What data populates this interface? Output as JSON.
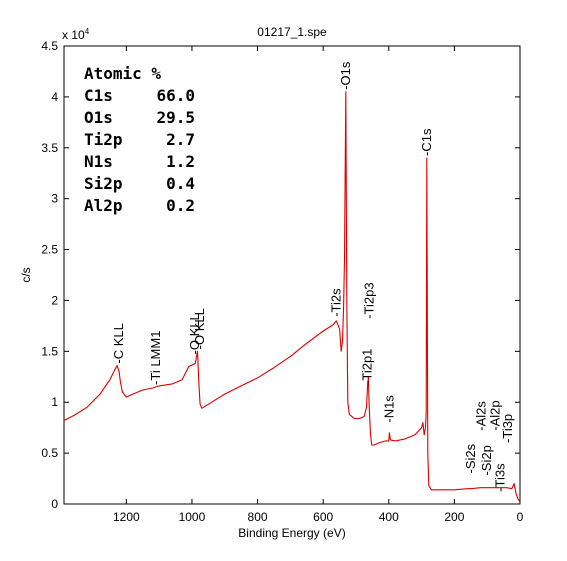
{
  "chart_data": {
    "type": "line",
    "title": "01217_1.spe",
    "xlabel": "Binding Energy (eV)",
    "ylabel": "c/s",
    "y_multiplier_label": "x 10",
    "y_multiplier_exp": "4",
    "xlim": [
      1390,
      0
    ],
    "ylim": [
      0,
      4.5
    ],
    "x_reversed": true,
    "grid": false,
    "x_ticks": [
      1200,
      1000,
      800,
      600,
      400,
      200,
      0
    ],
    "y_ticks": [
      0,
      0.5,
      1,
      1.5,
      2,
      2.5,
      3,
      3.5,
      4,
      4.5
    ],
    "x_tick_labels": [
      "1200",
      "1000",
      "800",
      "600",
      "400",
      "200",
      "0"
    ],
    "y_tick_labels": [
      "0",
      "0.5",
      "1",
      "1.5",
      "2",
      "2.5",
      "3",
      "3.5",
      "4",
      "4.5"
    ],
    "line_color": "#dd0000",
    "series": [
      {
        "x": [
          1390,
          1360,
          1320,
          1280,
          1250,
          1235,
          1228,
          1222,
          1218,
          1212,
          1200,
          1180,
          1150,
          1120,
          1100,
          1060,
          1030,
          1010,
          990,
          983,
          979,
          975,
          970,
          960,
          940,
          900,
          850,
          800,
          750,
          700,
          650,
          600,
          570,
          560,
          550,
          545,
          541,
          538,
          535,
          531,
          528,
          525,
          520,
          505,
          490,
          475,
          468,
          465,
          462,
          460,
          456,
          452,
          445,
          430,
          410,
          400,
          398,
          395,
          380,
          350,
          320,
          300,
          296,
          292,
          288,
          286,
          284,
          281,
          278,
          270,
          240,
          200,
          160,
          150,
          120,
          100,
          80,
          40,
          25,
          18,
          12,
          6,
          0
        ],
        "y": [
          0.82,
          0.87,
          0.95,
          1.08,
          1.22,
          1.32,
          1.36,
          1.3,
          1.2,
          1.1,
          1.05,
          1.08,
          1.12,
          1.14,
          1.16,
          1.18,
          1.22,
          1.35,
          1.38,
          1.5,
          1.2,
          0.98,
          0.94,
          0.96,
          1.0,
          1.08,
          1.16,
          1.24,
          1.34,
          1.45,
          1.58,
          1.7,
          1.76,
          1.8,
          1.72,
          1.5,
          1.6,
          1.9,
          2.4,
          4.05,
          2.0,
          1.0,
          0.88,
          0.84,
          0.84,
          0.86,
          0.95,
          1.15,
          1.25,
          0.98,
          0.7,
          0.58,
          0.58,
          0.6,
          0.62,
          0.62,
          0.7,
          0.63,
          0.62,
          0.64,
          0.68,
          0.75,
          0.8,
          0.68,
          0.75,
          0.9,
          3.4,
          0.5,
          0.18,
          0.14,
          0.14,
          0.14,
          0.15,
          0.15,
          0.16,
          0.16,
          0.16,
          0.16,
          0.15,
          0.2,
          0.1,
          0.05,
          0.02
        ]
      }
    ],
    "peak_labels": [
      {
        "text": "-C KLL",
        "x": 1222,
        "y": 1.36
      },
      {
        "text": "-Ti LMM1",
        "x": 1110,
        "y": 1.15
      },
      {
        "text": "-O KLL",
        "x": 990,
        "y": 1.45
      },
      {
        "text": "-O KLL",
        "x": 975,
        "y": 1.5
      },
      {
        "text": "-O1s",
        "x": 531,
        "y": 4.05
      },
      {
        "text": "-Ti2s",
        "x": 560,
        "y": 1.82
      },
      {
        "text": "-Ti2p1",
        "x": 465,
        "y": 1.15
      },
      {
        "text": "-Ti2p3",
        "x": 459,
        "y": 1.8
      },
      {
        "text": "-N1s",
        "x": 398,
        "y": 0.78
      },
      {
        "text": "-C1s",
        "x": 284,
        "y": 3.4
      },
      {
        "text": "-Si2s",
        "x": 150,
        "y": 0.28
      },
      {
        "text": "-Si2p",
        "x": 100,
        "y": 0.26
      },
      {
        "text": "-Al2s",
        "x": 118,
        "y": 0.7
      },
      {
        "text": "-Ti3s",
        "x": 60,
        "y": 0.1
      },
      {
        "text": "-Al2p",
        "x": 74,
        "y": 0.7
      },
      {
        "text": "-Ti3p",
        "x": 36,
        "y": 0.58
      }
    ],
    "composition": {
      "header": "Atomic %",
      "rows": [
        {
          "element": "C1s",
          "value": "66.0"
        },
        {
          "element": "O1s",
          "value": "29.5"
        },
        {
          "element": "Ti2p",
          "value": "2.7"
        },
        {
          "element": "N1s",
          "value": "1.2"
        },
        {
          "element": "Si2p",
          "value": "0.4"
        },
        {
          "element": "Al2p",
          "value": "0.2"
        }
      ]
    }
  }
}
